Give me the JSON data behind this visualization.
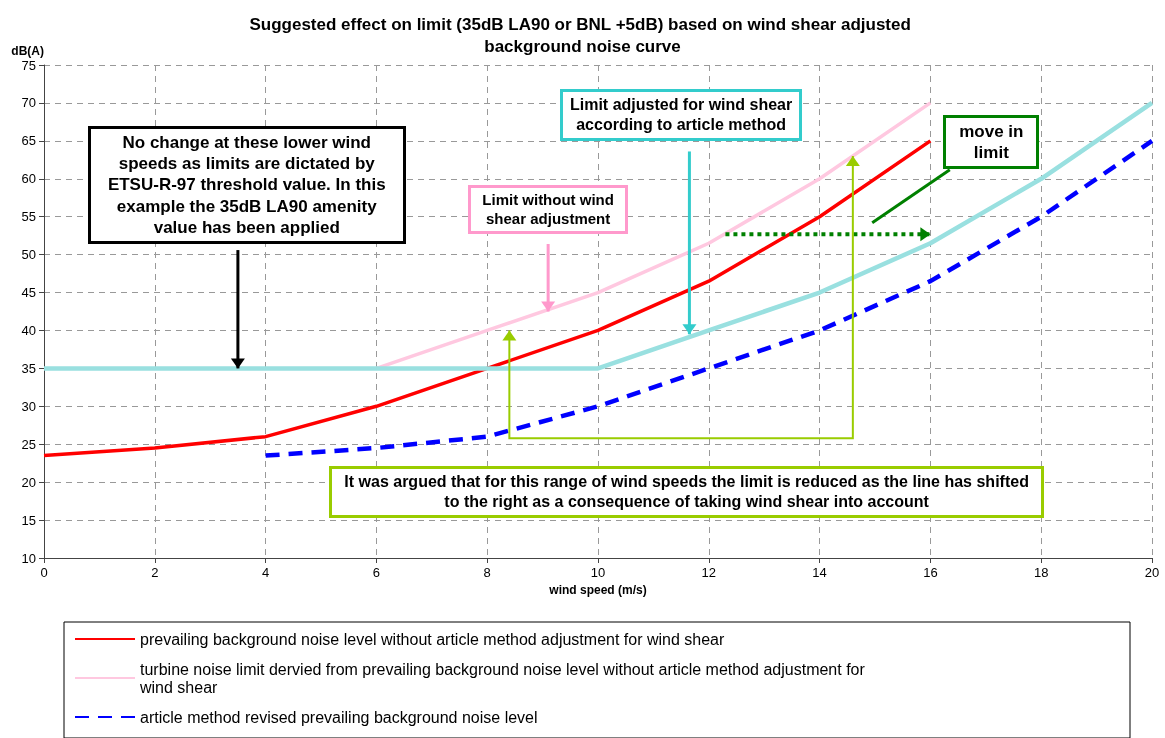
{
  "chart_data": {
    "type": "line",
    "title": "Suggested effect on limit (35dB LA90 or BNL +5dB) based on wind shear adjusted background noise curve",
    "xlabel": "wind speed (m/s)",
    "ylabel": "dB(A)",
    "xlim": [
      0,
      20
    ],
    "xticks": [
      0,
      2,
      4,
      6,
      8,
      10,
      12,
      14,
      16,
      18,
      20
    ],
    "ylim": [
      10,
      75
    ],
    "yticks": [
      10,
      15,
      20,
      25,
      30,
      35,
      40,
      45,
      50,
      55,
      60,
      65,
      70,
      75
    ],
    "grid": true,
    "legend": "bottom",
    "marker": "none",
    "series": [
      {
        "name": "prevailing background noise level without article method adjustment for wind shear",
        "color": "#ff0000",
        "line_style": "solid",
        "x": [
          0,
          2,
          4,
          6,
          8,
          10,
          12,
          14,
          16
        ],
        "values": [
          23.5,
          24.5,
          26,
          30,
          35,
          40,
          46.5,
          55,
          65
        ]
      },
      {
        "name": "turbine noise limit dervied from prevailing background noise level without article method adjustment for wind shear",
        "color": "#ffc8e0",
        "line_style": "solid",
        "x": [
          6,
          8,
          10,
          12,
          14,
          16
        ],
        "values": [
          35,
          40,
          45,
          51.5,
          60,
          70
        ]
      },
      {
        "color": "#99e0e0",
        "line_style": "solid",
        "x": [
          0,
          2,
          4,
          6,
          8,
          10,
          12,
          14,
          16,
          18,
          20
        ],
        "values": [
          35,
          35,
          35,
          35,
          35,
          35,
          40,
          45,
          51.5,
          60,
          70
        ]
      },
      {
        "name": "article method revised prevailing background noise level",
        "color": "#0000ff",
        "line_style": "dashed",
        "x": [
          4,
          6,
          8,
          10,
          12,
          14,
          16,
          18,
          20
        ],
        "values": [
          23.5,
          24.5,
          26,
          30,
          35,
          40,
          46.5,
          55,
          65
        ]
      }
    ],
    "annotations": [
      {
        "text": "No change at these lower wind speeds as limits are dictated by ETSU-R-97 threshold value. In this example the 35dB LA90 amenity value has been applied",
        "x": 3.5,
        "y": 35
      },
      {
        "text": "Limit without wind shear adjustment",
        "x": 9.1,
        "y": 42.5
      },
      {
        "text": "Limit adjusted for wind shear according to article method",
        "x": 11.65,
        "y": 39.5
      },
      "move in limit",
      "It was argued that for this range of wind speeds the limit is reduced as the line has shifted to the right as a consequence of taking wind shear into account"
    ]
  }
}
